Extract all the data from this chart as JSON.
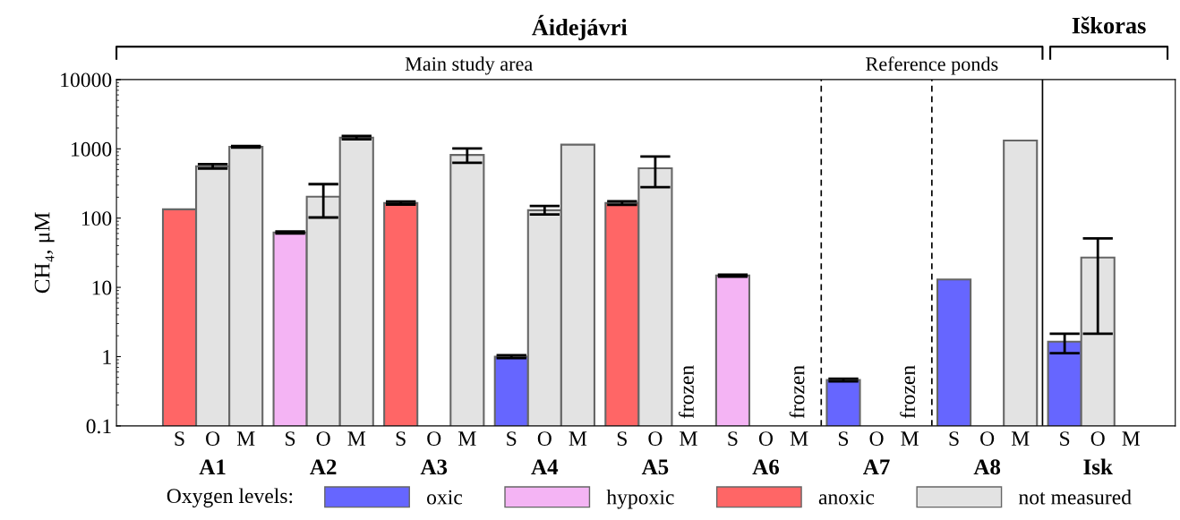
{
  "chart_data": {
    "type": "bar",
    "ylabel": "CH₄, μM",
    "log": "y",
    "ylim": [
      0.1,
      10000
    ],
    "yticks": [
      0.1,
      1,
      10,
      100,
      1000,
      10000
    ],
    "categories": [
      "A1",
      "A2",
      "A3",
      "A4",
      "A5",
      "A6",
      "A7",
      "A8",
      "Isk"
    ],
    "series": [
      {
        "name": "S",
        "values": [
          134,
          62,
          165,
          1.0,
          165,
          14.8,
          0.46,
          13,
          1.64
        ],
        "errors": [
          null,
          2,
          8,
          0.05,
          10,
          0.5,
          0.02,
          null,
          [
            1.12,
            2.14
          ]
        ],
        "colors": [
          "#ff6666",
          "#f4b4f4",
          "#ff6666",
          "#6666ff",
          "#ff6666",
          "#f4b4f4",
          "#6666ff",
          "#6666ff",
          "#6666ff"
        ]
      },
      {
        "name": "O",
        "values": [
          560,
          204,
          null,
          130,
          525,
          null,
          null,
          null,
          27
        ],
        "errors": [
          40,
          [
            102,
            309
          ],
          null,
          [
            113,
            150
          ],
          [
            280,
            775
          ],
          null,
          null,
          null,
          [
            2.14,
            51
          ]
        ],
        "colors": [
          "#e3e3e3",
          "#e3e3e3",
          null,
          "#e3e3e3",
          "#e3e3e3",
          null,
          null,
          null,
          "#e3e3e3"
        ]
      },
      {
        "name": "M",
        "values": [
          1070,
          1450,
          815,
          1150,
          null,
          null,
          null,
          1320,
          null
        ],
        "errors": [
          30,
          80,
          [
            630,
            1010
          ],
          null,
          null,
          null,
          null,
          null,
          null
        ],
        "colors": [
          "#e3e3e3",
          "#e3e3e3",
          "#e3e3e3",
          "#e3e3e3",
          null,
          null,
          null,
          "#e3e3e3",
          null
        ]
      },
      {
        "name": "oxic",
        "color": "#6666ff",
        "values": [
          null,
          null,
          null,
          null,
          null,
          null,
          null,
          null,
          null
        ]
      },
      {
        "name": "hypoxic",
        "color": "#f4b4f4",
        "values": [
          null,
          null,
          null,
          null,
          null,
          null,
          null,
          null,
          null
        ]
      },
      {
        "name": "anoxic",
        "color": "#ff6666",
        "values": [
          null,
          null,
          null,
          null,
          null,
          null,
          null,
          null,
          null
        ]
      },
      {
        "name": "not measured",
        "color": "#e3e3e3",
        "values": [
          null,
          null,
          null,
          null,
          null,
          null,
          null,
          null,
          null
        ]
      }
    ],
    "legend": "bottom",
    "legend_title": "Oxygen levels:",
    "grid": false,
    "annotations": [
      "Áidejávri",
      "Iškoras",
      "Main study area",
      "Reference ponds",
      "frozen",
      "frozen",
      "frozen"
    ]
  }
}
